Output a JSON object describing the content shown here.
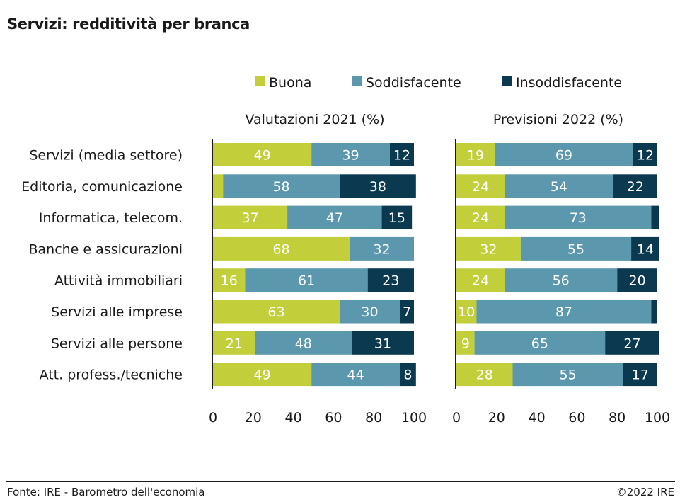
{
  "title": "Servizi: redditività per branca",
  "source": "Fonte: IRE - Barometro dell'economia",
  "copyright": "©2022 IRE",
  "colors": {
    "Buona": "#c2cf3b",
    "Soddisfacente": "#5b97ad",
    "Insoddisfacente": "#0b3a50",
    "text": "#1a1a1a"
  },
  "chart_data": [
    {
      "type": "bar",
      "orientation": "horizontal",
      "stacked": true,
      "title": "Valutazioni 2021 (%)",
      "categories": [
        "Servizi (media settore)",
        "Editoria, comunicazione",
        "Informatica, telecom.",
        "Banche e assicurazioni",
        "Attività immobiliari",
        "Servizi alle imprese",
        "Servizi alle persone",
        "Att. profess./tecniche"
      ],
      "series": [
        {
          "name": "Buona",
          "values": [
            49,
            5,
            37,
            68,
            16,
            63,
            21,
            49
          ]
        },
        {
          "name": "Soddisfacente",
          "values": [
            39,
            58,
            47,
            32,
            61,
            30,
            48,
            44
          ]
        },
        {
          "name": "Insoddisfacente",
          "values": [
            12,
            38,
            15,
            0,
            23,
            7,
            31,
            8
          ]
        }
      ],
      "data_labels": [
        [
          "49",
          "",
          "37",
          "68",
          "16",
          "63",
          "21",
          "49"
        ],
        [
          "39",
          "58",
          "47",
          "32",
          "61",
          "30",
          "48",
          "44"
        ],
        [
          "12",
          "38",
          "15",
          "",
          "23",
          "7",
          "31",
          "8"
        ]
      ],
      "xlim": [
        0,
        100
      ],
      "xticks": [
        0,
        20,
        40,
        60,
        80,
        100
      ],
      "legend": "top",
      "grid": false
    },
    {
      "type": "bar",
      "orientation": "horizontal",
      "stacked": true,
      "title": "Previsioni 2022 (%)",
      "categories": [
        "Servizi (media settore)",
        "Editoria, comunicazione",
        "Informatica, telecom.",
        "Banche e assicurazioni",
        "Attività immobiliari",
        "Servizi alle imprese",
        "Servizi alle persone",
        "Att. profess./tecniche"
      ],
      "series": [
        {
          "name": "Buona",
          "values": [
            19,
            24,
            24,
            32,
            24,
            10,
            9,
            28
          ]
        },
        {
          "name": "Soddisfacente",
          "values": [
            69,
            54,
            73,
            55,
            56,
            87,
            65,
            55
          ]
        },
        {
          "name": "Insoddisfacente",
          "values": [
            12,
            22,
            4,
            14,
            20,
            3,
            27,
            17
          ]
        }
      ],
      "data_labels": [
        [
          "19",
          "24",
          "24",
          "32",
          "24",
          "10",
          "9",
          "28"
        ],
        [
          "69",
          "54",
          "73",
          "55",
          "56",
          "87",
          "65",
          "55"
        ],
        [
          "12",
          "22",
          "",
          "14",
          "20",
          "",
          "27",
          "17"
        ]
      ],
      "xlim": [
        0,
        100
      ],
      "xticks": [
        0,
        20,
        40,
        60,
        80,
        100
      ],
      "legend": "top",
      "grid": false
    }
  ]
}
